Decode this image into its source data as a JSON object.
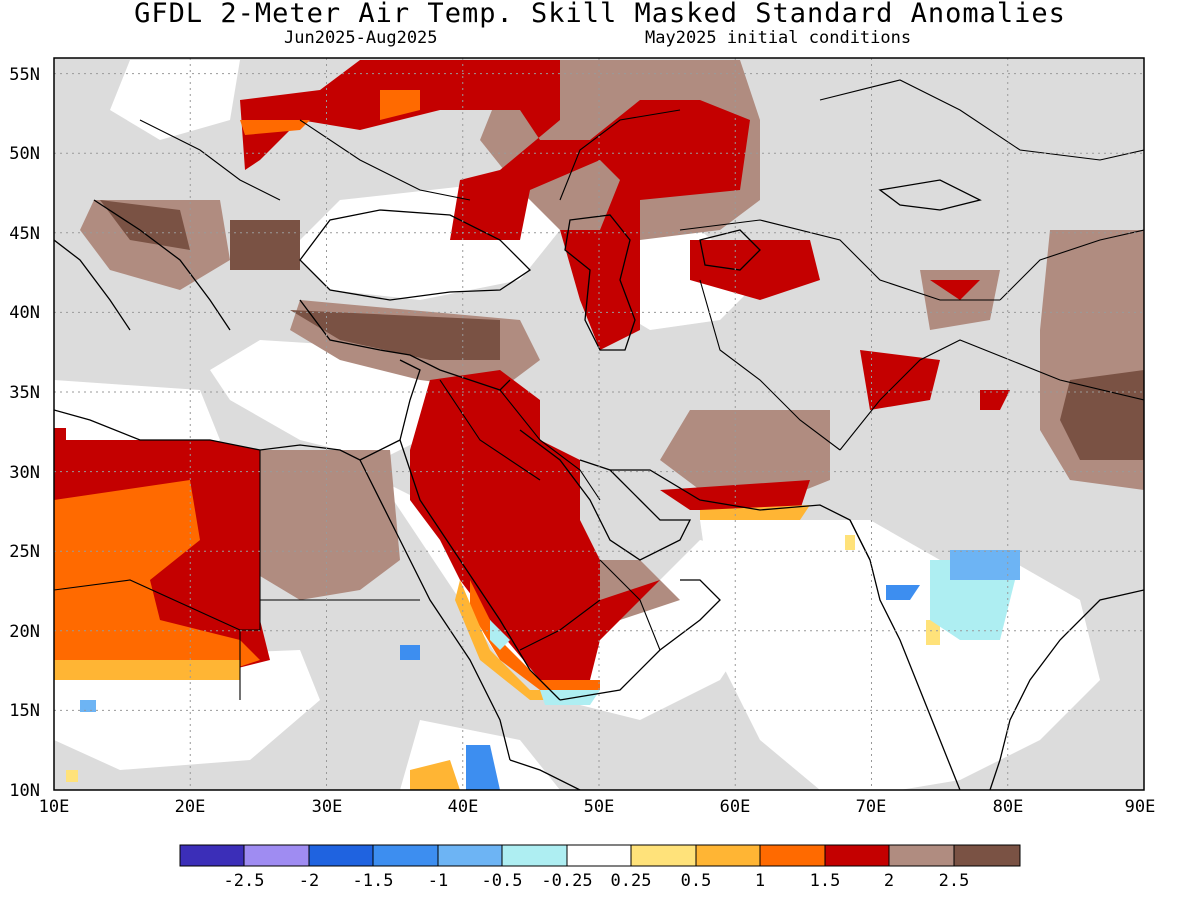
{
  "title": "GFDL 2-Meter Air Temp. Skill Masked Standard Anomalies",
  "subtitle_period": "Jun2025-Aug2025",
  "subtitle_init": "May2025 initial conditions",
  "axes": {
    "lon_min": 10,
    "lon_max": 90,
    "lat_min": 10,
    "lat_max": 56,
    "x_ticks": [
      "10E",
      "20E",
      "30E",
      "40E",
      "50E",
      "60E",
      "70E",
      "80E",
      "90E"
    ],
    "y_ticks": [
      "10N",
      "15N",
      "20N",
      "25N",
      "30N",
      "35N",
      "40N",
      "45N",
      "50N",
      "55N"
    ]
  },
  "colors": {
    "masked": "#dcdcdc",
    "land_outline": "#000000"
  },
  "legend": {
    "bins": [
      {
        "color": "#3b2eb8",
        "label": "-2.5"
      },
      {
        "color": "#9f8cf2",
        "label": "-2"
      },
      {
        "color": "#1f63e0",
        "label": "-1.5"
      },
      {
        "color": "#3d8ef0",
        "label": "-1"
      },
      {
        "color": "#6db4f4",
        "label": "-0.5"
      },
      {
        "color": "#aeeef2",
        "label": "-0.25"
      },
      {
        "color": "#ffffff",
        "label": "0.25"
      },
      {
        "color": "#ffe27a",
        "label": "0.5"
      },
      {
        "color": "#ffb534",
        "label": "1"
      },
      {
        "color": "#ff6a00",
        "label": "1.5"
      },
      {
        "color": "#c40000",
        "label": "2"
      },
      {
        "color": "#b08c80",
        "label": "2.5"
      },
      {
        "color": "#7a5244",
        "label": ""
      }
    ]
  }
}
